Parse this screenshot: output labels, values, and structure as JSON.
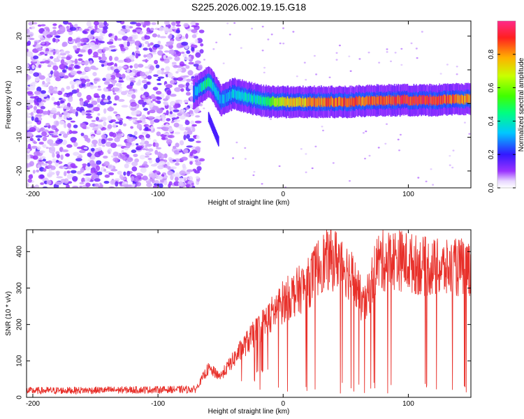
{
  "chart_data": [
    {
      "type": "heatmap",
      "title": "S225.2026.002.19.15.G18",
      "xlabel": "Height of straight line (km)",
      "ylabel": "Frequency (Hz)",
      "xlim": [
        -205,
        150
      ],
      "ylim": [
        -25,
        24.5
      ],
      "x_ticks": [
        -200,
        -100,
        0,
        100
      ],
      "y_ticks": [
        -20,
        -10,
        0,
        10,
        20
      ],
      "colorbar": {
        "label": "Normalized spectral amplitude",
        "range": [
          0,
          1
        ],
        "ticks": [
          0.0,
          0.2,
          0.4,
          0.6,
          0.8
        ],
        "tick_labels": [
          "0.0",
          "0.2",
          "0.4",
          "0.6",
          "0.8"
        ]
      },
      "ridge": {
        "description_points_x": [
          -72,
          -65,
          -60,
          -57,
          -50,
          -40,
          -30,
          -20,
          -10,
          0,
          20,
          50,
          80,
          100,
          120,
          150
        ],
        "frequency_hz": [
          3.0,
          5.0,
          6.5,
          5.5,
          1.0,
          3.0,
          2.0,
          1.0,
          0.5,
          0.5,
          0.5,
          0.5,
          1.0,
          1.0,
          1.0,
          1.5
        ],
        "amplitude": [
          0.25,
          0.4,
          0.5,
          0.4,
          0.3,
          0.35,
          0.35,
          0.4,
          0.55,
          0.7,
          0.8,
          0.85,
          0.85,
          0.9,
          0.9,
          0.8
        ]
      },
      "noise_region_x": [
        -205,
        -65
      ]
    },
    {
      "type": "line",
      "xlabel": "Height of straight line (km)",
      "ylabel": "SNR (10 * v/v)",
      "xlim": [
        -205,
        150
      ],
      "ylim": [
        0,
        460
      ],
      "x_ticks": [
        -200,
        -100,
        0,
        100
      ],
      "y_ticks": [
        0,
        100,
        200,
        300,
        400
      ],
      "color": "#e8302a",
      "envelope": {
        "x": [
          -205,
          -70,
          -60,
          -50,
          -30,
          -10,
          0,
          20,
          30,
          45,
          55,
          65,
          75,
          90,
          110,
          130,
          150
        ],
        "snr": [
          18,
          22,
          80,
          60,
          150,
          230,
          270,
          320,
          380,
          390,
          340,
          250,
          380,
          390,
          370,
          360,
          370
        ]
      }
    }
  ]
}
